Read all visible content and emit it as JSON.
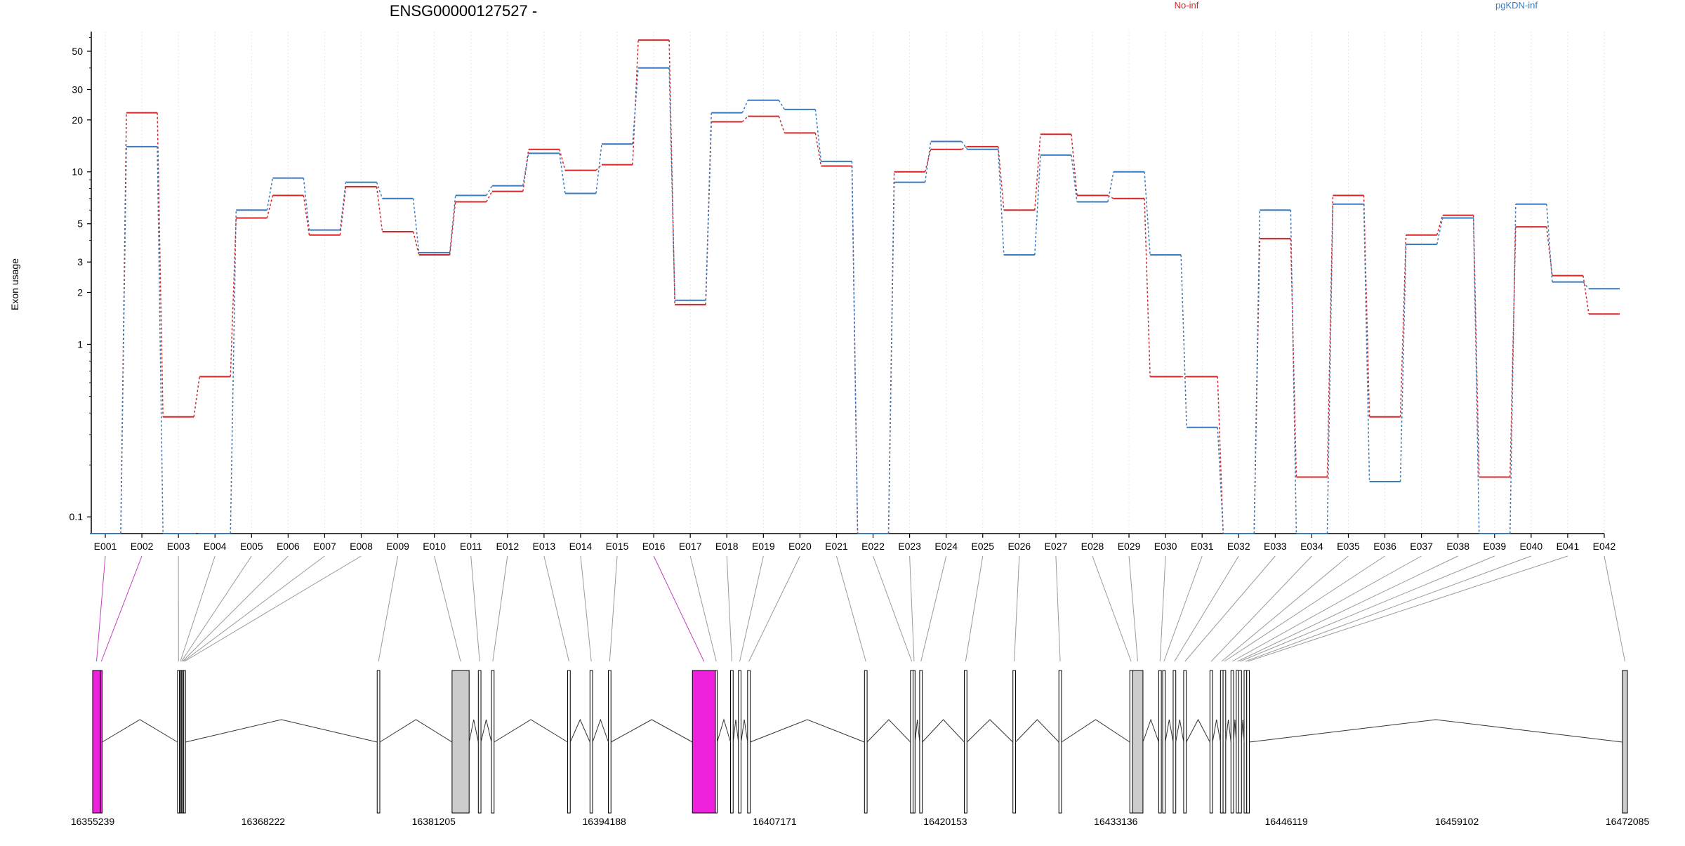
{
  "chart_data": {
    "type": "line",
    "title": "ENSG00000127527 -",
    "ylabel": "Exon usage",
    "xlabel": "",
    "yscale": "log",
    "ylim": [
      0.08,
      65
    ],
    "yticks": [
      0.1,
      1,
      2,
      3,
      5,
      10,
      20,
      30,
      50
    ],
    "categories": [
      "E001",
      "E002",
      "E003",
      "E004",
      "E005",
      "E006",
      "E007",
      "E008",
      "E009",
      "E010",
      "E011",
      "E012",
      "E013",
      "E014",
      "E015",
      "E016",
      "E017",
      "E018",
      "E019",
      "E020",
      "E021",
      "E022",
      "E023",
      "E024",
      "E025",
      "E026",
      "E027",
      "E028",
      "E029",
      "E030",
      "E031",
      "E032",
      "E033",
      "E034",
      "E035",
      "E036",
      "E037",
      "E038",
      "E039",
      "E040",
      "E041",
      "E042"
    ],
    "series": [
      {
        "name": "No-inf",
        "color": "#d62728",
        "values": [
          0.08,
          22,
          0.38,
          0.65,
          5.4,
          7.3,
          4.3,
          8.2,
          4.5,
          3.3,
          6.7,
          7.7,
          13.5,
          10.2,
          11.0,
          58,
          1.7,
          19.5,
          21,
          16.8,
          10.8,
          0.08,
          10.0,
          13.5,
          14.0,
          6.0,
          16.5,
          7.3,
          7.0,
          0.65,
          0.65,
          0.08,
          4.1,
          0.17,
          7.3,
          0.38,
          4.3,
          5.6,
          0.17,
          4.8,
          2.5,
          1.5
        ]
      },
      {
        "name": "pgKDN-inf",
        "color": "#3a7abf",
        "values": [
          0.08,
          14,
          0.08,
          0.08,
          6.0,
          9.2,
          4.6,
          8.7,
          7.0,
          3.4,
          7.3,
          8.3,
          12.8,
          7.5,
          14.5,
          40,
          1.8,
          22,
          26,
          23,
          11.5,
          0.08,
          8.7,
          15,
          13.5,
          3.3,
          12.5,
          6.7,
          10.0,
          3.3,
          0.33,
          0.08,
          6.0,
          0.08,
          6.5,
          0.16,
          3.8,
          5.4,
          0.08,
          6.5,
          2.3,
          2.1
        ]
      }
    ],
    "legend": {
      "placement": "top"
    },
    "grid": {
      "x": true,
      "y": false
    },
    "genome": {
      "start_label": "16355239",
      "end_label": "16472085",
      "coord_ticks": [
        "16355239",
        "16368222",
        "16381205",
        "16394188",
        "16407171",
        "16420153",
        "16433136",
        "16446119",
        "16459102",
        "16472085"
      ],
      "exons": [
        {
          "id": "E001",
          "start": 16355239,
          "end": 16355830,
          "fill": "#ee22dd"
        },
        {
          "id": "E002",
          "start": 16355830,
          "end": 16355900,
          "fill": "#ee22dd"
        },
        {
          "id": "E003",
          "start": 16361700,
          "end": 16361850,
          "fill": "#ffffff"
        },
        {
          "id": "E004",
          "start": 16361850,
          "end": 16361930,
          "fill": "#ffffff"
        },
        {
          "id": "E005",
          "start": 16361930,
          "end": 16362010,
          "fill": "#ffffff"
        },
        {
          "id": "E006",
          "start": 16362010,
          "end": 16362090,
          "fill": "#ffffff"
        },
        {
          "id": "E007",
          "start": 16362090,
          "end": 16362170,
          "fill": "#ffffff"
        },
        {
          "id": "E008",
          "start": 16362170,
          "end": 16362260,
          "fill": "#ffffff"
        },
        {
          "id": "E009",
          "start": 16376900,
          "end": 16377100,
          "fill": "#ffffff"
        },
        {
          "id": "E010",
          "start": 16382600,
          "end": 16383900,
          "fill": "#cccccc"
        },
        {
          "id": "E011",
          "start": 16384600,
          "end": 16384800,
          "fill": "#ffffff"
        },
        {
          "id": "E012",
          "start": 16385600,
          "end": 16385800,
          "fill": "#ffffff"
        },
        {
          "id": "E013",
          "start": 16391400,
          "end": 16391600,
          "fill": "#ffffff"
        },
        {
          "id": "E014",
          "start": 16393100,
          "end": 16393300,
          "fill": "#ffffff"
        },
        {
          "id": "E015",
          "start": 16394500,
          "end": 16394700,
          "fill": "#ffffff"
        },
        {
          "id": "E016",
          "start": 16400900,
          "end": 16402650,
          "fill": "#ee22dd"
        },
        {
          "id": "E017",
          "start": 16402650,
          "end": 16402750,
          "fill": "#ffffff"
        },
        {
          "id": "E018",
          "start": 16403800,
          "end": 16404000,
          "fill": "#ffffff"
        },
        {
          "id": "E019",
          "start": 16404400,
          "end": 16404600,
          "fill": "#ffffff"
        },
        {
          "id": "E020",
          "start": 16405100,
          "end": 16405300,
          "fill": "#ffffff"
        },
        {
          "id": "E021",
          "start": 16414000,
          "end": 16414200,
          "fill": "#ffffff"
        },
        {
          "id": "E022",
          "start": 16417500,
          "end": 16417700,
          "fill": "#ffffff"
        },
        {
          "id": "E023",
          "start": 16417700,
          "end": 16417850,
          "fill": "#ffffff"
        },
        {
          "id": "E024",
          "start": 16418200,
          "end": 16418400,
          "fill": "#ffffff"
        },
        {
          "id": "E025",
          "start": 16421600,
          "end": 16421800,
          "fill": "#ffffff"
        },
        {
          "id": "E026",
          "start": 16425300,
          "end": 16425500,
          "fill": "#ffffff"
        },
        {
          "id": "E027",
          "start": 16428800,
          "end": 16429000,
          "fill": "#ffffff"
        },
        {
          "id": "E028",
          "start": 16434200,
          "end": 16434400,
          "fill": "#ffffff"
        },
        {
          "id": "E029",
          "start": 16434400,
          "end": 16435200,
          "fill": "#cccccc"
        },
        {
          "id": "E030",
          "start": 16436400,
          "end": 16436600,
          "fill": "#ffffff"
        },
        {
          "id": "E031",
          "start": 16436700,
          "end": 16436900,
          "fill": "#ffffff"
        },
        {
          "id": "E032",
          "start": 16437500,
          "end": 16437700,
          "fill": "#ffffff"
        },
        {
          "id": "E033",
          "start": 16438300,
          "end": 16438500,
          "fill": "#ffffff"
        },
        {
          "id": "E034",
          "start": 16440300,
          "end": 16440500,
          "fill": "#ffffff"
        },
        {
          "id": "E035",
          "start": 16441100,
          "end": 16441300,
          "fill": "#ffffff"
        },
        {
          "id": "E036",
          "start": 16441300,
          "end": 16441500,
          "fill": "#ffffff"
        },
        {
          "id": "E037",
          "start": 16441900,
          "end": 16442100,
          "fill": "#ffffff"
        },
        {
          "id": "E038",
          "start": 16442300,
          "end": 16442500,
          "fill": "#ffffff"
        },
        {
          "id": "E039",
          "start": 16442500,
          "end": 16442700,
          "fill": "#ffffff"
        },
        {
          "id": "E040",
          "start": 16442900,
          "end": 16443100,
          "fill": "#ffffff"
        },
        {
          "id": "E041",
          "start": 16443100,
          "end": 16443300,
          "fill": "#ffffff"
        },
        {
          "id": "E042",
          "start": 16471700,
          "end": 16472085,
          "fill": "#cccccc"
        }
      ]
    }
  }
}
